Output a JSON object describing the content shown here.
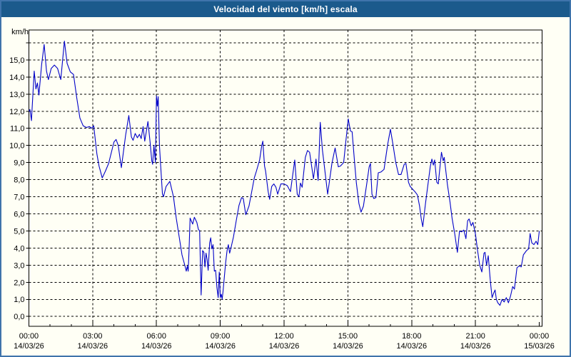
{
  "window": {
    "title": "Velocidad del viento [km/h] escala"
  },
  "colors": {
    "frame_border": "#3f74ab",
    "titlebar_bg": "#1b5a8c",
    "titlebar_text": "#ffffff",
    "background": "#fffff5",
    "plot_border": "#000000",
    "grid": "#000000",
    "tick_text": "#000000",
    "line": "#0000c8"
  },
  "chart_data": {
    "type": "line",
    "title": "Velocidad del viento [km/h] escala",
    "ylabel_unit": "km/h",
    "ylim": [
      0,
      16.7
    ],
    "xlim_hours": [
      0,
      24
    ],
    "grid": "dashed",
    "legend": "none",
    "y_ticks": [
      {
        "value": 0,
        "label": "0,0"
      },
      {
        "value": 1,
        "label": "1,0"
      },
      {
        "value": 2,
        "label": "2,0"
      },
      {
        "value": 3,
        "label": "3,0"
      },
      {
        "value": 4,
        "label": "4,0"
      },
      {
        "value": 5,
        "label": "5,0"
      },
      {
        "value": 6,
        "label": "6,0"
      },
      {
        "value": 7,
        "label": "7,0"
      },
      {
        "value": 8,
        "label": "8,0"
      },
      {
        "value": 9,
        "label": "9,0"
      },
      {
        "value": 10,
        "label": "10,0"
      },
      {
        "value": 11,
        "label": "11,0"
      },
      {
        "value": 12,
        "label": "12,0"
      },
      {
        "value": 13,
        "label": "13,0"
      },
      {
        "value": 14,
        "label": "14,0"
      },
      {
        "value": 15,
        "label": "15,0"
      },
      {
        "value": 16,
        "label": ""
      }
    ],
    "x_ticks": [
      {
        "hour": 0,
        "time": "00:00",
        "date": "14/03/26"
      },
      {
        "hour": 3,
        "time": "03:00",
        "date": "14/03/26"
      },
      {
        "hour": 6,
        "time": "06:00",
        "date": "14/03/26"
      },
      {
        "hour": 9,
        "time": "09:00",
        "date": "14/03/26"
      },
      {
        "hour": 12,
        "time": "12:00",
        "date": "14/03/26"
      },
      {
        "hour": 15,
        "time": "15:00",
        "date": "14/03/26"
      },
      {
        "hour": 18,
        "time": "18:00",
        "date": "14/03/26"
      },
      {
        "hour": 21,
        "time": "21:00",
        "date": "14/03/26"
      },
      {
        "hour": 24,
        "time": "00:00",
        "date": "15/03/26"
      }
    ],
    "minor_tick_every_hours": 1,
    "series": [
      {
        "color": "#0000c8",
        "points": [
          [
            0.0,
            12.0
          ],
          [
            0.05,
            12.1
          ],
          [
            0.12,
            11.45
          ],
          [
            0.25,
            14.35
          ],
          [
            0.33,
            13.3
          ],
          [
            0.4,
            13.65
          ],
          [
            0.47,
            12.95
          ],
          [
            0.6,
            14.75
          ],
          [
            0.72,
            15.9
          ],
          [
            0.83,
            14.35
          ],
          [
            0.92,
            13.85
          ],
          [
            1.05,
            14.5
          ],
          [
            1.2,
            14.7
          ],
          [
            1.35,
            14.5
          ],
          [
            1.5,
            13.85
          ],
          [
            1.67,
            16.1
          ],
          [
            1.8,
            14.8
          ],
          [
            1.95,
            14.3
          ],
          [
            2.1,
            14.15
          ],
          [
            2.25,
            12.8
          ],
          [
            2.4,
            11.6
          ],
          [
            2.55,
            11.15
          ],
          [
            2.7,
            11.05
          ],
          [
            2.85,
            11.1
          ],
          [
            2.95,
            11.0
          ],
          [
            3.05,
            11.15
          ],
          [
            3.2,
            9.5
          ],
          [
            3.3,
            8.8
          ],
          [
            3.45,
            8.1
          ],
          [
            3.6,
            8.5
          ],
          [
            3.75,
            8.95
          ],
          [
            3.9,
            9.7
          ],
          [
            4.0,
            10.2
          ],
          [
            4.1,
            10.35
          ],
          [
            4.2,
            10.0
          ],
          [
            4.35,
            8.7
          ],
          [
            4.55,
            10.6
          ],
          [
            4.7,
            11.75
          ],
          [
            4.82,
            10.5
          ],
          [
            4.9,
            10.3
          ],
          [
            5.0,
            10.7
          ],
          [
            5.1,
            10.45
          ],
          [
            5.2,
            10.65
          ],
          [
            5.28,
            10.4
          ],
          [
            5.37,
            11.1
          ],
          [
            5.45,
            10.25
          ],
          [
            5.6,
            11.4
          ],
          [
            5.7,
            10.2
          ],
          [
            5.78,
            9.1
          ],
          [
            5.82,
            8.9
          ],
          [
            5.88,
            10.0
          ],
          [
            5.95,
            9.0
          ],
          [
            6.0,
            12.9
          ],
          [
            6.04,
            12.3
          ],
          [
            6.08,
            12.85
          ],
          [
            6.14,
            10.0
          ],
          [
            6.18,
            9.15
          ],
          [
            6.28,
            7.15
          ],
          [
            6.33,
            7.0
          ],
          [
            6.45,
            7.6
          ],
          [
            6.63,
            7.9
          ],
          [
            6.8,
            7.0
          ],
          [
            6.93,
            5.75
          ],
          [
            7.1,
            4.4
          ],
          [
            7.2,
            3.6
          ],
          [
            7.33,
            3.0
          ],
          [
            7.4,
            2.65
          ],
          [
            7.45,
            2.95
          ],
          [
            7.49,
            2.65
          ],
          [
            7.53,
            3.85
          ],
          [
            7.58,
            5.75
          ],
          [
            7.7,
            5.4
          ],
          [
            7.78,
            5.8
          ],
          [
            7.9,
            5.5
          ],
          [
            7.97,
            5.1
          ],
          [
            8.03,
            5.0
          ],
          [
            8.1,
            1.25
          ],
          [
            8.17,
            3.85
          ],
          [
            8.23,
            3.75
          ],
          [
            8.28,
            2.9
          ],
          [
            8.33,
            3.7
          ],
          [
            8.38,
            3.35
          ],
          [
            8.43,
            2.7
          ],
          [
            8.5,
            4.3
          ],
          [
            8.55,
            4.6
          ],
          [
            8.6,
            3.95
          ],
          [
            8.66,
            4.2
          ],
          [
            8.72,
            2.65
          ],
          [
            8.78,
            2.7
          ],
          [
            8.84,
            1.7
          ],
          [
            8.9,
            1.1
          ],
          [
            8.95,
            2.6
          ],
          [
            9.0,
            1.1
          ],
          [
            9.05,
            1.3
          ],
          [
            9.09,
            1.0
          ],
          [
            9.13,
            1.45
          ],
          [
            9.25,
            3.1
          ],
          [
            9.32,
            3.85
          ],
          [
            9.38,
            4.2
          ],
          [
            9.44,
            3.7
          ],
          [
            9.52,
            4.1
          ],
          [
            9.62,
            4.65
          ],
          [
            9.75,
            5.6
          ],
          [
            9.88,
            6.5
          ],
          [
            10.0,
            6.95
          ],
          [
            10.08,
            6.9
          ],
          [
            10.2,
            5.95
          ],
          [
            10.35,
            6.45
          ],
          [
            10.48,
            7.3
          ],
          [
            10.6,
            8.1
          ],
          [
            10.7,
            8.5
          ],
          [
            10.85,
            9.15
          ],
          [
            10.95,
            10.0
          ],
          [
            11.0,
            10.25
          ],
          [
            11.08,
            8.8
          ],
          [
            11.13,
            8.5
          ],
          [
            11.25,
            7.3
          ],
          [
            11.32,
            6.85
          ],
          [
            11.42,
            7.6
          ],
          [
            11.52,
            7.75
          ],
          [
            11.62,
            7.55
          ],
          [
            11.7,
            7.15
          ],
          [
            11.85,
            7.75
          ],
          [
            12.0,
            7.75
          ],
          [
            12.15,
            7.65
          ],
          [
            12.3,
            7.3
          ],
          [
            12.5,
            9.15
          ],
          [
            12.62,
            7.15
          ],
          [
            12.7,
            7.0
          ],
          [
            12.77,
            7.8
          ],
          [
            12.85,
            7.55
          ],
          [
            13.0,
            9.3
          ],
          [
            13.1,
            9.7
          ],
          [
            13.2,
            9.6
          ],
          [
            13.3,
            8.75
          ],
          [
            13.38,
            8.05
          ],
          [
            13.5,
            9.2
          ],
          [
            13.6,
            7.95
          ],
          [
            13.7,
            11.35
          ],
          [
            13.8,
            9.75
          ],
          [
            13.88,
            8.95
          ],
          [
            14.05,
            7.15
          ],
          [
            14.25,
            8.95
          ],
          [
            14.4,
            9.85
          ],
          [
            14.55,
            8.75
          ],
          [
            14.65,
            8.8
          ],
          [
            14.8,
            9.0
          ],
          [
            14.95,
            10.8
          ],
          [
            15.02,
            11.55
          ],
          [
            15.12,
            10.85
          ],
          [
            15.2,
            10.8
          ],
          [
            15.32,
            8.95
          ],
          [
            15.4,
            7.8
          ],
          [
            15.52,
            6.6
          ],
          [
            15.62,
            6.1
          ],
          [
            15.73,
            6.45
          ],
          [
            15.88,
            7.7
          ],
          [
            16.0,
            8.75
          ],
          [
            16.06,
            8.95
          ],
          [
            16.13,
            7.15
          ],
          [
            16.22,
            6.9
          ],
          [
            16.32,
            6.95
          ],
          [
            16.43,
            8.4
          ],
          [
            16.56,
            8.45
          ],
          [
            16.7,
            8.6
          ],
          [
            16.87,
            10.05
          ],
          [
            17.0,
            10.95
          ],
          [
            17.12,
            10.05
          ],
          [
            17.25,
            9.0
          ],
          [
            17.38,
            8.3
          ],
          [
            17.5,
            8.3
          ],
          [
            17.65,
            8.9
          ],
          [
            17.73,
            8.95
          ],
          [
            17.85,
            7.85
          ],
          [
            17.93,
            7.6
          ],
          [
            18.0,
            7.5
          ],
          [
            18.15,
            7.3
          ],
          [
            18.27,
            7.1
          ],
          [
            18.37,
            6.45
          ],
          [
            18.45,
            5.7
          ],
          [
            18.52,
            5.25
          ],
          [
            18.65,
            6.6
          ],
          [
            18.78,
            7.85
          ],
          [
            18.88,
            8.8
          ],
          [
            18.95,
            9.2
          ],
          [
            19.02,
            8.85
          ],
          [
            19.08,
            9.15
          ],
          [
            19.18,
            7.85
          ],
          [
            19.25,
            7.75
          ],
          [
            19.4,
            9.6
          ],
          [
            19.48,
            9.1
          ],
          [
            19.53,
            9.3
          ],
          [
            19.68,
            7.7
          ],
          [
            19.8,
            6.7
          ],
          [
            19.9,
            5.75
          ],
          [
            20.03,
            4.8
          ],
          [
            20.15,
            3.75
          ],
          [
            20.25,
            5.0
          ],
          [
            20.35,
            4.95
          ],
          [
            20.45,
            5.05
          ],
          [
            20.55,
            4.55
          ],
          [
            20.63,
            5.6
          ],
          [
            20.7,
            5.7
          ],
          [
            20.8,
            5.3
          ],
          [
            20.88,
            5.5
          ],
          [
            21.0,
            4.8
          ],
          [
            21.1,
            3.85
          ],
          [
            21.2,
            3.0
          ],
          [
            21.3,
            2.6
          ],
          [
            21.4,
            3.7
          ],
          [
            21.45,
            3.75
          ],
          [
            21.52,
            3.0
          ],
          [
            21.6,
            3.55
          ],
          [
            21.7,
            2.05
          ],
          [
            21.78,
            1.1
          ],
          [
            21.85,
            1.35
          ],
          [
            21.92,
            1.55
          ],
          [
            21.98,
            1.0
          ],
          [
            22.05,
            0.8
          ],
          [
            22.15,
            0.65
          ],
          [
            22.25,
            1.0
          ],
          [
            22.35,
            0.85
          ],
          [
            22.45,
            1.1
          ],
          [
            22.55,
            0.8
          ],
          [
            22.65,
            1.2
          ],
          [
            22.75,
            1.75
          ],
          [
            22.83,
            1.6
          ],
          [
            22.95,
            2.85
          ],
          [
            23.05,
            2.95
          ],
          [
            23.15,
            2.9
          ],
          [
            23.25,
            3.6
          ],
          [
            23.4,
            3.85
          ],
          [
            23.5,
            3.95
          ],
          [
            23.57,
            4.85
          ],
          [
            23.65,
            4.3
          ],
          [
            23.75,
            4.2
          ],
          [
            23.85,
            4.4
          ],
          [
            23.93,
            4.2
          ],
          [
            24.0,
            5.0
          ]
        ]
      }
    ]
  }
}
